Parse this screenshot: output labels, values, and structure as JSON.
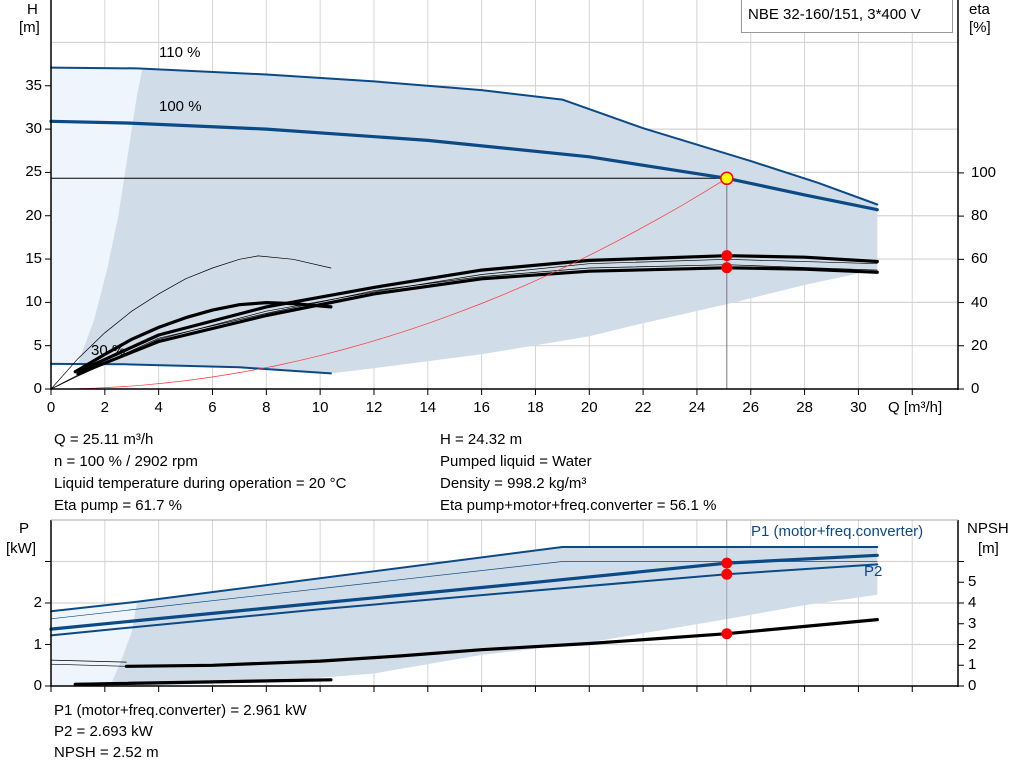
{
  "pump_label": "NBE 32-160/151, 3*400 V",
  "colors": {
    "curve_blue": "#0b4a85",
    "area_shade": "#d0dce8",
    "area_light": "#eef5fc",
    "grid": "#d4d4d4",
    "duty_point": "#ffff00",
    "marker_red": "#ff0000",
    "system_curve": "#ff3333"
  },
  "info_left": [
    "Q = 25.11 m³/h",
    "n = 100 % / 2902 rpm",
    "Liquid temperature during operation = 20 °C",
    "Eta pump = 61.7 %"
  ],
  "info_right": [
    "H = 24.32 m",
    "Pumped liquid = Water",
    "Density = 998.2 kg/m³",
    "Eta pump+motor+freq.converter = 56.1 %"
  ],
  "info_bottom": [
    "P1 (motor+freq.converter) = 2.961 kW",
    "P2 = 2.693 kW",
    "NPSH = 2.52 m"
  ],
  "chart_data": [
    {
      "type": "line",
      "title": "",
      "xlabel": "Q [m³/h]",
      "ylabel_left": [
        "H",
        "[m]"
      ],
      "ylabel_right": [
        "eta",
        "[%]"
      ],
      "xlim": [
        0,
        33.7
      ],
      "ylim_left": [
        0,
        44.9
      ],
      "ylim_right": [
        0,
        180
      ],
      "x_ticks": [
        0,
        2,
        4,
        6,
        8,
        10,
        12,
        14,
        16,
        18,
        20,
        22,
        24,
        26,
        28,
        30
      ],
      "y_ticks_left": [
        0,
        5,
        10,
        15,
        20,
        25,
        30,
        35
      ],
      "y_ticks_right": [
        0,
        20,
        40,
        60,
        80,
        100
      ],
      "grid": true,
      "speed_labels": [
        "110 %",
        "100 %",
        "30 %"
      ],
      "series": [
        {
          "name": "110 %",
          "axis": "left",
          "weight": "medium",
          "color": "#0b4a85",
          "points": [
            [
              0,
              37.1
            ],
            [
              3.2,
              37.0
            ],
            [
              8,
              36.3
            ],
            [
              12,
              35.5
            ],
            [
              16,
              34.5
            ],
            [
              19,
              33.4
            ],
            [
              22,
              30.1
            ],
            [
              26,
              26.3
            ],
            [
              28.5,
              23.8
            ],
            [
              30.7,
              21.3
            ]
          ]
        },
        {
          "name": "100 %",
          "axis": "left",
          "weight": "thick",
          "color": "#0b4a85",
          "points": [
            [
              0,
              30.9
            ],
            [
              2.8,
              30.7
            ],
            [
              8,
              30.0
            ],
            [
              14,
              28.7
            ],
            [
              20,
              26.8
            ],
            [
              25.11,
              24.32
            ],
            [
              28,
              22.4
            ],
            [
              30.7,
              20.7
            ]
          ]
        },
        {
          "name": "30 %",
          "axis": "left",
          "weight": "medium",
          "color": "#0b4a85",
          "points": [
            [
              0,
              2.9
            ],
            [
              2.8,
              2.85
            ],
            [
              7,
              2.5
            ],
            [
              10.4,
              1.8
            ]
          ]
        },
        {
          "axis": "right",
          "weight": "thick",
          "color": "#000000",
          "points": [
            [
              1,
              8
            ],
            [
              4,
              25
            ],
            [
              8,
              38
            ],
            [
              12,
              47
            ],
            [
              16,
              55
            ],
            [
              20,
              59.5
            ],
            [
              25.11,
              61.7
            ],
            [
              28,
              61
            ],
            [
              30.7,
              59
            ]
          ]
        },
        {
          "axis": "right",
          "weight": "thin",
          "color": "#000000",
          "points": [
            [
              0,
              0
            ],
            [
              1,
              6
            ],
            [
              4,
              23
            ],
            [
              8,
              36
            ],
            [
              12,
              45
            ],
            [
              16,
              53
            ],
            [
              20,
              58
            ],
            [
              25.11,
              60
            ],
            [
              30.7,
              58
            ]
          ]
        },
        {
          "axis": "right",
          "weight": "thick",
          "color": "#000000",
          "points": [
            [
              1,
              7
            ],
            [
              4,
              22
            ],
            [
              8,
              34
            ],
            [
              12,
              44
            ],
            [
              16,
              51
            ],
            [
              20,
              54.5
            ],
            [
              25.11,
              56.1
            ],
            [
              28,
              55.5
            ],
            [
              30.7,
              54
            ]
          ]
        },
        {
          "axis": "right",
          "weight": "thin",
          "color": "#000000",
          "points": [
            [
              0,
              0
            ],
            [
              1,
              6.5
            ],
            [
              4,
              23.5
            ],
            [
              8,
              35
            ],
            [
              12,
              45.5
            ],
            [
              16,
              52
            ],
            [
              20,
              56
            ],
            [
              25.11,
              57.5
            ],
            [
              30.7,
              55
            ]
          ]
        },
        {
          "axis": "right",
          "weight": "thin",
          "color": "#000000",
          "points": [
            [
              0,
              0
            ],
            [
              1,
              14
            ],
            [
              2,
              26
            ],
            [
              3,
              36
            ],
            [
              4,
              44
            ],
            [
              5,
              51
            ],
            [
              6,
              56
            ],
            [
              7,
              60
            ],
            [
              7.7,
              61.6
            ],
            [
              9,
              60
            ],
            [
              10.4,
              56
            ]
          ]
        },
        {
          "axis": "right",
          "weight": "thick",
          "color": "#000000",
          "points": [
            [
              0.9,
              8
            ],
            [
              2,
              16
            ],
            [
              3,
              23
            ],
            [
              4,
              28.5
            ],
            [
              5,
              33
            ],
            [
              6,
              36.5
            ],
            [
              7,
              39
            ],
            [
              8,
              40
            ],
            [
              9,
              39.5
            ],
            [
              10.4,
              38
            ]
          ]
        },
        {
          "name": "system",
          "axis": "left",
          "weight": "thin",
          "color": "#ff3333",
          "points": "quadratic:25.11:24.32"
        }
      ],
      "shaded_area": [
        [
          3.4,
          37.0
        ],
        [
          8,
          36.3
        ],
        [
          12,
          35.5
        ],
        [
          16,
          34.5
        ],
        [
          19,
          33.4
        ],
        [
          22,
          30.1
        ],
        [
          26,
          26.3
        ],
        [
          28.5,
          23.8
        ],
        [
          30.7,
          21.3
        ],
        [
          30.7,
          13.8
        ],
        [
          28,
          12.0
        ],
        [
          25.11,
          9.8
        ],
        [
          22,
          7.6
        ],
        [
          20,
          6.1
        ],
        [
          16,
          4.0
        ],
        [
          12,
          2.4
        ],
        [
          10.4,
          1.8
        ],
        [
          7,
          2.5
        ],
        [
          2.8,
          2.85
        ],
        [
          1.0,
          2.9
        ],
        [
          1.6,
          8
        ],
        [
          2.1,
          14
        ],
        [
          2.5,
          20
        ],
        [
          2.8,
          26
        ],
        [
          3.0,
          30
        ],
        [
          3.2,
          34
        ]
      ],
      "light_area": [
        [
          0,
          37.1
        ],
        [
          3.4,
          37.0
        ],
        [
          3.2,
          34
        ],
        [
          3.0,
          30
        ],
        [
          2.8,
          26
        ],
        [
          2.5,
          20
        ],
        [
          2.1,
          14
        ],
        [
          1.6,
          8
        ],
        [
          1.0,
          2.9
        ],
        [
          0,
          2.9
        ]
      ],
      "duty_point": {
        "Q": 25.11,
        "H": 24.32,
        "eta_pump": 61.7,
        "eta_total": 56.1
      }
    },
    {
      "type": "line",
      "title": "",
      "ylabel_left": [
        "P",
        "[kW]"
      ],
      "ylabel_right": [
        "NPSH",
        "[m]"
      ],
      "xlim": [
        0,
        33.7
      ],
      "ylim_left": [
        0,
        4
      ],
      "ylim_right": [
        0,
        8
      ],
      "y_ticks_left": [
        0,
        1,
        2,
        3
      ],
      "y_tick_labels_left": [
        "0",
        "1",
        "2",
        ""
      ],
      "y_ticks_right": [
        0,
        1,
        2,
        3,
        4,
        5,
        6
      ],
      "y_tick_labels_right": [
        "0",
        "1",
        "2",
        "3",
        "4",
        "5",
        ""
      ],
      "grid": true,
      "legend_labels": {
        "p1": "P1 (motor+freq.converter)",
        "p2": "P2"
      },
      "series": [
        {
          "axis": "left",
          "weight": "medium",
          "color": "#0b4a85",
          "points": [
            [
              0,
              1.8
            ],
            [
              3.2,
              2.03
            ],
            [
              19,
              3.35
            ],
            [
              30.7,
              3.35
            ]
          ]
        },
        {
          "axis": "left",
          "weight": "thin",
          "color": "#0b4a85",
          "points": [
            [
              0,
              1.62
            ],
            [
              19,
              3.0
            ],
            [
              30.7,
              3.0
            ]
          ]
        },
        {
          "name": "P1 (motor+freq.converter)",
          "axis": "left",
          "weight": "thick",
          "color": "#0b4a85",
          "points": [
            [
              0,
              1.37
            ],
            [
              2.8,
              1.55
            ],
            [
              10,
              2.0
            ],
            [
              18,
              2.5
            ],
            [
              25.11,
              2.961
            ],
            [
              30.7,
              3.15
            ]
          ]
        },
        {
          "name": "P2",
          "axis": "left",
          "weight": "medium",
          "color": "#0b4a85",
          "points": [
            [
              0,
              1.22
            ],
            [
              2.8,
              1.4
            ],
            [
              10,
              1.85
            ],
            [
              18,
              2.3
            ],
            [
              25.11,
              2.693
            ],
            [
              30.7,
              2.93
            ]
          ]
        },
        {
          "axis": "left",
          "weight": "medium",
          "color": "#0b4a85",
          "points": [
            [
              0.9,
              0.05
            ],
            [
              10.4,
              0.16
            ]
          ]
        },
        {
          "axis": "left",
          "weight": "thick",
          "color": "#000000",
          "points": [
            [
              0.9,
              0.04
            ],
            [
              10.4,
              0.15
            ]
          ]
        },
        {
          "name": "NPSH",
          "axis": "right",
          "weight": "thick",
          "color": "#000000",
          "points": [
            [
              2.8,
              0.95
            ],
            [
              6,
              1.0
            ],
            [
              10,
              1.2
            ],
            [
              13,
              1.45
            ],
            [
              16,
              1.75
            ],
            [
              20,
              2.05
            ],
            [
              25.11,
              2.52
            ],
            [
              30.7,
              3.2
            ]
          ]
        },
        {
          "axis": "right",
          "weight": "thin",
          "color": "#000000",
          "points": [
            [
              0,
              1.25
            ],
            [
              2.8,
              1.15
            ]
          ]
        },
        {
          "axis": "right",
          "weight": "thin",
          "color": "#000000",
          "points": [
            [
              0,
              1.05
            ],
            [
              2.8,
              0.95
            ]
          ]
        }
      ],
      "shaded_area": [
        [
          3.2,
          2.03
        ],
        [
          19,
          3.35
        ],
        [
          30.7,
          3.35
        ],
        [
          30.7,
          2.2
        ],
        [
          28,
          1.95
        ],
        [
          25,
          1.6
        ],
        [
          20,
          1.05
        ],
        [
          16,
          0.75
        ],
        [
          12,
          0.3
        ],
        [
          8,
          0.1
        ],
        [
          4,
          0.02
        ],
        [
          2.2,
          0.0
        ],
        [
          2.6,
          0.6
        ],
        [
          3.0,
          1.3
        ]
      ],
      "light_area": [
        [
          0,
          1.8
        ],
        [
          3.2,
          2.03
        ],
        [
          3.0,
          1.3
        ],
        [
          2.6,
          0.6
        ],
        [
          2.2,
          0.0
        ],
        [
          0,
          0
        ]
      ],
      "markers": [
        {
          "Q": 25.11,
          "P": 2.961
        },
        {
          "Q": 25.11,
          "P": 2.693
        },
        {
          "Q": 25.11,
          "NPSH": 2.52
        }
      ]
    }
  ]
}
